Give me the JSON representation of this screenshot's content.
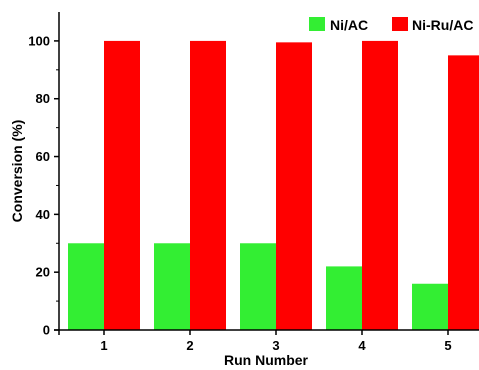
{
  "chart_data": {
    "type": "bar",
    "title": "",
    "xlabel": "Run Number",
    "ylabel": "Conversion (%)",
    "categories": [
      "1",
      "2",
      "3",
      "4",
      "5"
    ],
    "ylim": [
      0,
      110
    ],
    "yticks": [
      "0",
      "20",
      "40",
      "60",
      "80",
      "100"
    ],
    "grid": false,
    "legend_position": "top-right",
    "series": [
      {
        "name": "Ni/AC",
        "color": "#33ee33",
        "values": [
          30,
          30,
          30,
          22,
          16
        ]
      },
      {
        "name": "Ni-Ru/AC",
        "color": "#ff0000",
        "values": [
          100,
          100,
          99.5,
          100,
          95
        ]
      }
    ]
  }
}
